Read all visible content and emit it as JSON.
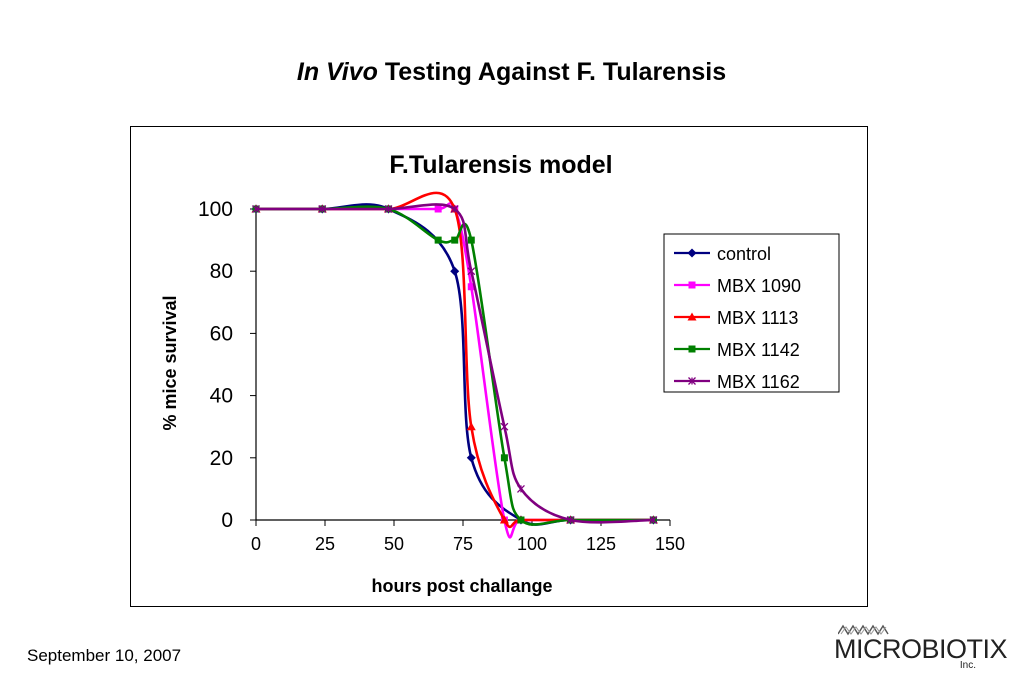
{
  "slide": {
    "title_italic": "In Vivo",
    "title_rest": " Testing Against F. Tularensis",
    "date": "September 10, 2007",
    "logo_text": "MICROBIOTIX",
    "logo_sub": "Inc."
  },
  "chart_data": {
    "type": "line",
    "title": "F.Tularensis model",
    "xlabel": "hours post challange",
    "ylabel": "% mice survival",
    "xlim": [
      0,
      150
    ],
    "ylim": [
      0,
      100
    ],
    "xticks": [
      0,
      25,
      50,
      75,
      100,
      125,
      150
    ],
    "yticks": [
      0,
      20,
      40,
      60,
      80,
      100
    ],
    "legend_position": "right",
    "grid": false,
    "series": [
      {
        "name": "control",
        "color": "#000080",
        "marker": "diamond",
        "points": [
          [
            0,
            100
          ],
          [
            24,
            100
          ],
          [
            48,
            100
          ],
          [
            72,
            80
          ],
          [
            78,
            20
          ],
          [
            96,
            0
          ],
          [
            114,
            0
          ],
          [
            144,
            0
          ]
        ]
      },
      {
        "name": "MBX 1090",
        "color": "#ff00ff",
        "marker": "square",
        "points": [
          [
            0,
            100
          ],
          [
            24,
            100
          ],
          [
            48,
            100
          ],
          [
            66,
            100
          ],
          [
            72,
            100
          ],
          [
            78,
            75
          ],
          [
            90,
            0
          ],
          [
            96,
            0
          ],
          [
            114,
            0
          ],
          [
            144,
            0
          ]
        ]
      },
      {
        "name": "MBX 1113",
        "color": "#ff0000",
        "marker": "triangle",
        "points": [
          [
            0,
            100
          ],
          [
            24,
            100
          ],
          [
            48,
            100
          ],
          [
            72,
            100
          ],
          [
            78,
            30
          ],
          [
            90,
            0
          ],
          [
            96,
            0
          ],
          [
            114,
            0
          ],
          [
            144,
            0
          ]
        ]
      },
      {
        "name": "MBX 1142",
        "color": "#008000",
        "marker": "square",
        "points": [
          [
            0,
            100
          ],
          [
            24,
            100
          ],
          [
            48,
            100
          ],
          [
            66,
            90
          ],
          [
            72,
            90
          ],
          [
            78,
            90
          ],
          [
            90,
            20
          ],
          [
            96,
            0
          ],
          [
            114,
            0
          ],
          [
            144,
            0
          ]
        ]
      },
      {
        "name": "MBX 1162",
        "color": "#800080",
        "marker": "star",
        "points": [
          [
            0,
            100
          ],
          [
            24,
            100
          ],
          [
            48,
            100
          ],
          [
            72,
            100
          ],
          [
            78,
            80
          ],
          [
            90,
            30
          ],
          [
            96,
            10
          ],
          [
            114,
            0
          ],
          [
            144,
            0
          ]
        ]
      }
    ]
  }
}
